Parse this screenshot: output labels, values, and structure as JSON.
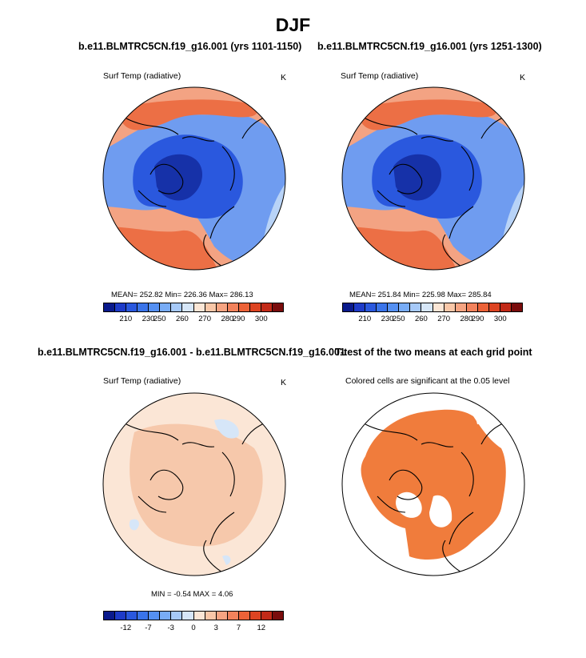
{
  "figure_title": "DJF",
  "chart_data": [
    {
      "type": "heatmap",
      "title": "b.e11.BLMTRC5CN.f19_g16.001 (yrs 1101-1150)",
      "variable": "Surf Temp (radiative)",
      "units": "K",
      "stats": "MEAN= 252.82  Min= 226.36  Max= 286.13",
      "colorbar_ticks": [
        "210",
        "230",
        "250",
        "260",
        "270",
        "280",
        "290",
        "300"
      ],
      "colorbar_colors": [
        "#0a1a8c",
        "#1e3bc8",
        "#2a58de",
        "#3a74ea",
        "#5590f2",
        "#78acf6",
        "#a6c9f8",
        "#d6e6f8",
        "#fbe6d6",
        "#f9c7a8",
        "#f6a482",
        "#f2825c",
        "#ec6238",
        "#dd4422",
        "#c22a18",
        "#7a0c0c"
      ],
      "projection": "north polar stereographic"
    },
    {
      "type": "heatmap",
      "title": "b.e11.BLMTRC5CN.f19_g16.001 (yrs 1251-1300)",
      "variable": "Surf Temp (radiative)",
      "units": "K",
      "stats": "MEAN= 251.84  Min= 225.98  Max= 285.84",
      "colorbar_ticks": [
        "210",
        "230",
        "250",
        "260",
        "270",
        "280",
        "290",
        "300"
      ],
      "colorbar_colors": [
        "#0a1a8c",
        "#1e3bc8",
        "#2a58de",
        "#3a74ea",
        "#5590f2",
        "#78acf6",
        "#a6c9f8",
        "#d6e6f8",
        "#fbe6d6",
        "#f9c7a8",
        "#f6a482",
        "#f2825c",
        "#ec6238",
        "#dd4422",
        "#c22a18",
        "#7a0c0c"
      ],
      "projection": "north polar stereographic"
    },
    {
      "type": "heatmap",
      "title": "b.e11.BLMTRC5CN.f19_g16.001 - b.e11.BLMTRC5CN.f19_g16.001",
      "variable": "Surf Temp (radiative)",
      "units": "K",
      "stats": "MIN =  -0.54 MAX =   4.06",
      "colorbar_ticks": [
        "-12",
        "-7",
        "-3",
        "0",
        "3",
        "7",
        "12"
      ],
      "colorbar_colors": [
        "#0a1a8c",
        "#1e3bc8",
        "#2a58de",
        "#3a74ea",
        "#5590f2",
        "#78acf6",
        "#a6c9f8",
        "#d6e6f8",
        "#fbe6d6",
        "#f9c7a8",
        "#f6a482",
        "#f2825c",
        "#ec6238",
        "#dd4422",
        "#c22a18",
        "#7a0c0c"
      ],
      "projection": "north polar stereographic"
    },
    {
      "type": "heatmap",
      "title": "T-test of the two means at each grid point",
      "subtitle": "Colored cells are significant at the 0.05 level",
      "significant_color": "#f07c3c",
      "projection": "north polar stereographic"
    }
  ]
}
